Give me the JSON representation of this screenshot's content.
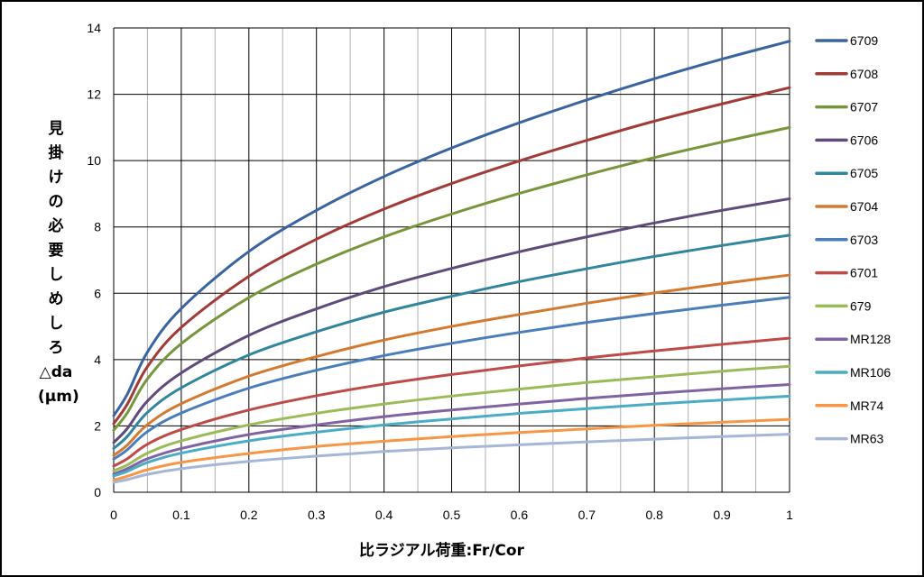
{
  "chart_data": {
    "type": "line",
    "title": "",
    "xlabel": "比ラジアル荷重:Fr/Cor",
    "ylabel_chars": [
      "見",
      "掛",
      "け",
      "の",
      "必",
      "要",
      "し",
      "め",
      "し",
      "ろ",
      "△da",
      "(μm)"
    ],
    "xlim": [
      0,
      1
    ],
    "ylim": [
      0,
      14
    ],
    "x_ticks": [
      "0",
      "0.1",
      "0.2",
      "0.3",
      "0.4",
      "0.5",
      "0.6",
      "0.7",
      "0.8",
      "0.9",
      "1"
    ],
    "y_ticks": [
      "0",
      "2",
      "4",
      "6",
      "8",
      "10",
      "12",
      "14"
    ],
    "grid": true,
    "legend_position": "right",
    "x": [
      0,
      0.02,
      0.05,
      0.1,
      0.2,
      0.3,
      0.4,
      0.5,
      0.6,
      0.7,
      0.8,
      0.9,
      1
    ],
    "series": [
      {
        "name": "6709",
        "color": "#3a64a0",
        "values": [
          2.31,
          2.95,
          4.23,
          5.54,
          7.26,
          8.5,
          9.52,
          10.38,
          11.14,
          11.83,
          12.47,
          13.06,
          13.6
        ]
      },
      {
        "name": "6708",
        "color": "#a23b38",
        "values": [
          2.07,
          2.65,
          3.79,
          4.97,
          6.51,
          7.63,
          8.54,
          9.31,
          9.99,
          10.61,
          11.19,
          11.71,
          12.2
        ]
      },
      {
        "name": "6707",
        "color": "#77953b",
        "values": [
          1.87,
          2.39,
          3.42,
          4.48,
          5.87,
          6.88,
          7.7,
          8.39,
          9.01,
          9.57,
          10.09,
          10.56,
          11.0
        ]
      },
      {
        "name": "6706",
        "color": "#604a7b",
        "values": [
          1.5,
          1.92,
          2.75,
          3.6,
          4.73,
          5.53,
          6.2,
          6.75,
          7.25,
          7.7,
          8.12,
          8.5,
          8.85
        ]
      },
      {
        "name": "6705",
        "color": "#31859c",
        "values": [
          1.32,
          1.68,
          2.41,
          3.15,
          4.14,
          4.84,
          5.43,
          5.91,
          6.35,
          6.74,
          7.11,
          7.44,
          7.75
        ]
      },
      {
        "name": "6704",
        "color": "#d37a30",
        "values": [
          1.11,
          1.42,
          2.04,
          2.67,
          3.5,
          4.09,
          4.59,
          5.0,
          5.36,
          5.7,
          6.01,
          6.29,
          6.55
        ]
      },
      {
        "name": "6703",
        "color": "#4a7ebb",
        "values": [
          1.0,
          1.28,
          1.83,
          2.39,
          3.14,
          3.68,
          4.12,
          4.49,
          4.82,
          5.12,
          5.39,
          5.64,
          5.88
        ]
      },
      {
        "name": "6701",
        "color": "#be4b48",
        "values": [
          0.79,
          1.01,
          1.45,
          1.89,
          2.48,
          2.91,
          3.26,
          3.55,
          3.81,
          4.05,
          4.26,
          4.46,
          4.65
        ]
      },
      {
        "name": "679",
        "color": "#9bbb59",
        "values": [
          0.65,
          0.82,
          1.18,
          1.55,
          2.03,
          2.38,
          2.66,
          2.9,
          3.11,
          3.31,
          3.48,
          3.65,
          3.8
        ]
      },
      {
        "name": "MR128",
        "color": "#8064a2",
        "values": [
          0.55,
          0.71,
          1.01,
          1.32,
          1.74,
          2.03,
          2.28,
          2.48,
          2.66,
          2.83,
          2.98,
          3.12,
          3.25
        ]
      },
      {
        "name": "MR106",
        "color": "#4bacc6",
        "values": [
          0.49,
          0.63,
          0.9,
          1.18,
          1.55,
          1.81,
          2.03,
          2.21,
          2.38,
          2.52,
          2.66,
          2.78,
          2.9
        ]
      },
      {
        "name": "MR74",
        "color": "#f79646",
        "values": [
          0.37,
          0.48,
          0.68,
          0.9,
          1.17,
          1.38,
          1.54,
          1.68,
          1.8,
          1.91,
          2.02,
          2.11,
          2.2
        ]
      },
      {
        "name": "MR63",
        "color": "#a5b6d6",
        "values": [
          0.3,
          0.38,
          0.54,
          0.71,
          0.93,
          1.09,
          1.23,
          1.34,
          1.43,
          1.52,
          1.6,
          1.68,
          1.75
        ]
      }
    ]
  }
}
